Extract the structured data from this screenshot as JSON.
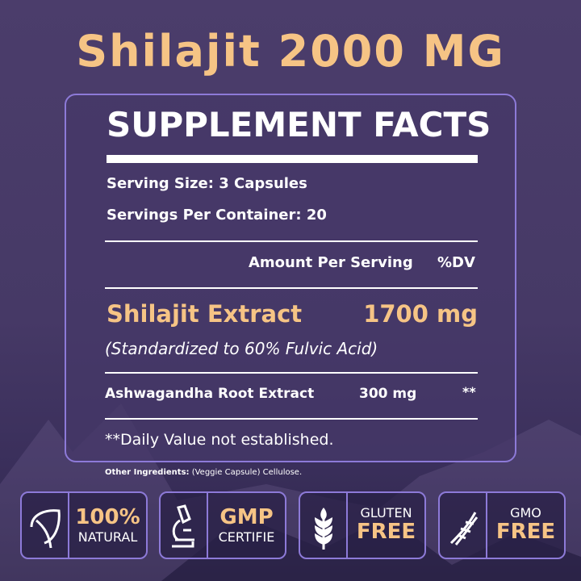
{
  "title": "Shilajit 2000 MG",
  "facts": {
    "heading": "SUPPLEMENT FACTS",
    "serving_size": "Serving Size: 3 Capsules",
    "servings_per_container": "Servings Per Container: 20",
    "amount_header": "Amount Per Serving",
    "dv_header": "%DV",
    "ingredients": [
      {
        "name": "Shilajit Extract",
        "amount": "1700 mg",
        "note": "(Standardized to 60% Fulvic Acid)"
      },
      {
        "name": "Ashwagandha Root Extract",
        "amount": "300 mg",
        "dv": "**"
      }
    ],
    "footnote": "**Daily Value not established."
  },
  "other_ingredients": {
    "label": "Other Ingredients:",
    "value": "(Veggie Capsule) Cellulose."
  },
  "badges": [
    {
      "icon": "leaf-icon",
      "top": "100%",
      "bottom": "NATURAL"
    },
    {
      "icon": "microscope-icon",
      "top": "GMP",
      "bottom": "CERTIFIE"
    },
    {
      "icon": "wheat-icon",
      "top": "GLUTEN",
      "bottom": "FREE"
    },
    {
      "icon": "dna-icon",
      "top": "GMO",
      "bottom": "FREE"
    }
  ],
  "colors": {
    "accent": "#f6c485",
    "border": "#8d7ad8",
    "background": "#483a68"
  }
}
